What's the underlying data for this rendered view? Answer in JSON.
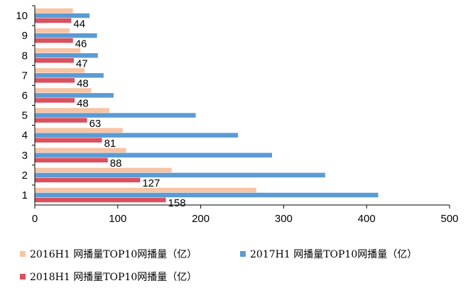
{
  "chart_data": {
    "type": "bar",
    "orientation": "horizontal",
    "categories": [
      "1",
      "2",
      "3",
      "4",
      "5",
      "6",
      "7",
      "8",
      "9",
      "10"
    ],
    "series": [
      {
        "name": "2016H1 网播量TOP10网播量（亿）",
        "color": "#F8C4A4",
        "values": [
          267,
          165,
          110,
          106,
          90,
          68,
          60,
          55,
          42,
          46
        ]
      },
      {
        "name": "2017H1 网播量TOP10网播量（亿）",
        "color": "#5B9BD5",
        "values": [
          414,
          350,
          286,
          245,
          194,
          95,
          83,
          76,
          75,
          66
        ]
      },
      {
        "name": "2018H1 网播量TOP10网播量（亿）",
        "color": "#D9515E",
        "values": [
          158,
          127,
          88,
          81,
          63,
          48,
          48,
          47,
          46,
          44
        ]
      }
    ],
    "data_labels_series": 2,
    "xlim": [
      0,
      500
    ],
    "xticks": [
      0,
      100,
      200,
      300,
      400,
      500
    ],
    "grid": false,
    "legend_position": "bottom"
  }
}
